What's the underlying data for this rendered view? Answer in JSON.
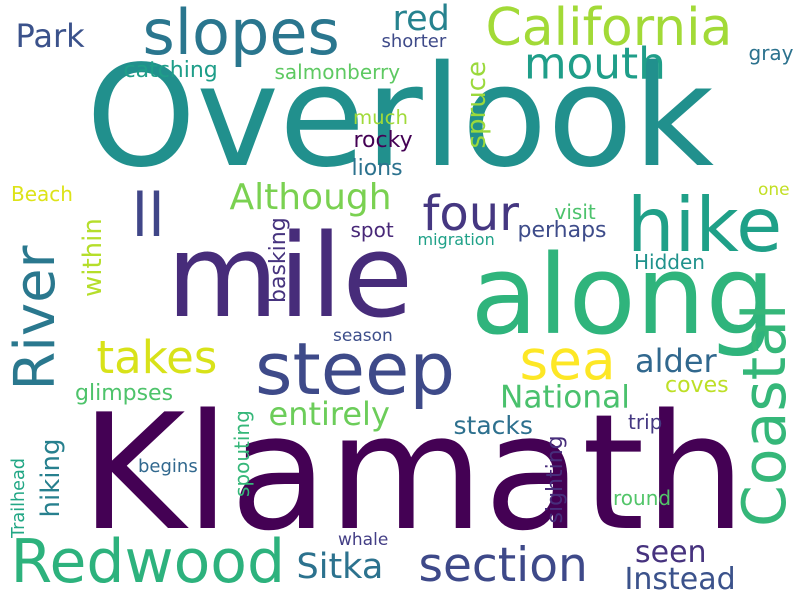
{
  "words": [
    {
      "text": "Overlook",
      "color": "#21908d",
      "rotate": false
    },
    {
      "text": "Klamath",
      "color": "#440154",
      "rotate": false
    },
    {
      "text": "mile",
      "color": "#472c7a",
      "rotate": false
    },
    {
      "text": "along",
      "color": "#2fb47c",
      "rotate": false
    },
    {
      "text": "slopes",
      "color": "#2a768e",
      "rotate": false
    },
    {
      "text": "steep",
      "color": "#3e4a89",
      "rotate": false
    },
    {
      "text": "Redwood",
      "color": "#2db27d",
      "rotate": false
    },
    {
      "text": "River",
      "color": "#2a788e",
      "rotate": true
    },
    {
      "text": "Coastal",
      "color": "#35b779",
      "rotate": true
    },
    {
      "text": "hike",
      "color": "#1fa088",
      "rotate": false
    },
    {
      "text": "California",
      "color": "#a2da37",
      "rotate": false
    },
    {
      "text": "sea",
      "color": "#fde725",
      "rotate": false
    },
    {
      "text": "section",
      "color": "#3e4989",
      "rotate": false
    },
    {
      "text": "takes",
      "color": "#d8e219",
      "rotate": false
    },
    {
      "text": "four",
      "color": "#453781",
      "rotate": false
    },
    {
      "text": "ll",
      "color": "#404688",
      "rotate": false
    },
    {
      "text": "mouth",
      "color": "#1f9e89",
      "rotate": false
    },
    {
      "text": "Although",
      "color": "#7ad151",
      "rotate": false
    },
    {
      "text": "entirely",
      "color": "#6ccd5a",
      "rotate": false
    },
    {
      "text": "National",
      "color": "#4ac16d",
      "rotate": false
    },
    {
      "text": "alder",
      "color": "#31688e",
      "rotate": false
    },
    {
      "text": "Sitka",
      "color": "#2c728e",
      "rotate": false
    },
    {
      "text": "seen",
      "color": "#46327e",
      "rotate": false
    },
    {
      "text": "Instead",
      "color": "#3b528b",
      "rotate": false
    },
    {
      "text": "hiking",
      "color": "#27808e",
      "rotate": true
    },
    {
      "text": "within",
      "color": "#b5de2b",
      "rotate": true
    },
    {
      "text": "spruce",
      "color": "#9bd93c",
      "rotate": true
    },
    {
      "text": "red",
      "color": "#26828e",
      "rotate": false
    },
    {
      "text": "Park",
      "color": "#3b528b",
      "rotate": false
    },
    {
      "text": "stacks",
      "color": "#2d708e",
      "rotate": false
    },
    {
      "text": "shorter",
      "color": "#3e4a89",
      "rotate": false
    },
    {
      "text": "catching",
      "color": "#1f9e89",
      "rotate": false
    },
    {
      "text": "salmonberry",
      "color": "#5ec962",
      "rotate": false
    },
    {
      "text": "gray",
      "color": "#2c728e",
      "rotate": false
    },
    {
      "text": "much",
      "color": "#a0da39",
      "rotate": false
    },
    {
      "text": "rocky",
      "color": "#440154",
      "rotate": false
    },
    {
      "text": "lions",
      "color": "#2c728e",
      "rotate": false
    },
    {
      "text": "Beach",
      "color": "#dde318",
      "rotate": false
    },
    {
      "text": "one",
      "color": "#c2df23",
      "rotate": false
    },
    {
      "text": "visit",
      "color": "#4cc26c",
      "rotate": false
    },
    {
      "text": "spot",
      "color": "#482878",
      "rotate": false
    },
    {
      "text": "migration",
      "color": "#1fa188",
      "rotate": false
    },
    {
      "text": "perhaps",
      "color": "#3e4c8a",
      "rotate": false
    },
    {
      "text": "Hidden",
      "color": "#20928c",
      "rotate": false
    },
    {
      "text": "basking",
      "color": "#46337e",
      "rotate": true
    },
    {
      "text": "season",
      "color": "#3d4e8a",
      "rotate": false
    },
    {
      "text": "glimpses",
      "color": "#4ec36b",
      "rotate": false
    },
    {
      "text": "coves",
      "color": "#bddf26",
      "rotate": false
    },
    {
      "text": "trip",
      "color": "#453882",
      "rotate": false
    },
    {
      "text": "Trailhead",
      "color": "#22a785",
      "rotate": true
    },
    {
      "text": "begins",
      "color": "#31688e",
      "rotate": false
    },
    {
      "text": "spouting",
      "color": "#35b779",
      "rotate": true
    },
    {
      "text": "sighting",
      "color": "#472d7b",
      "rotate": true
    },
    {
      "text": "round",
      "color": "#52c569",
      "rotate": false
    },
    {
      "text": "whale",
      "color": "#433e85",
      "rotate": false
    }
  ]
}
